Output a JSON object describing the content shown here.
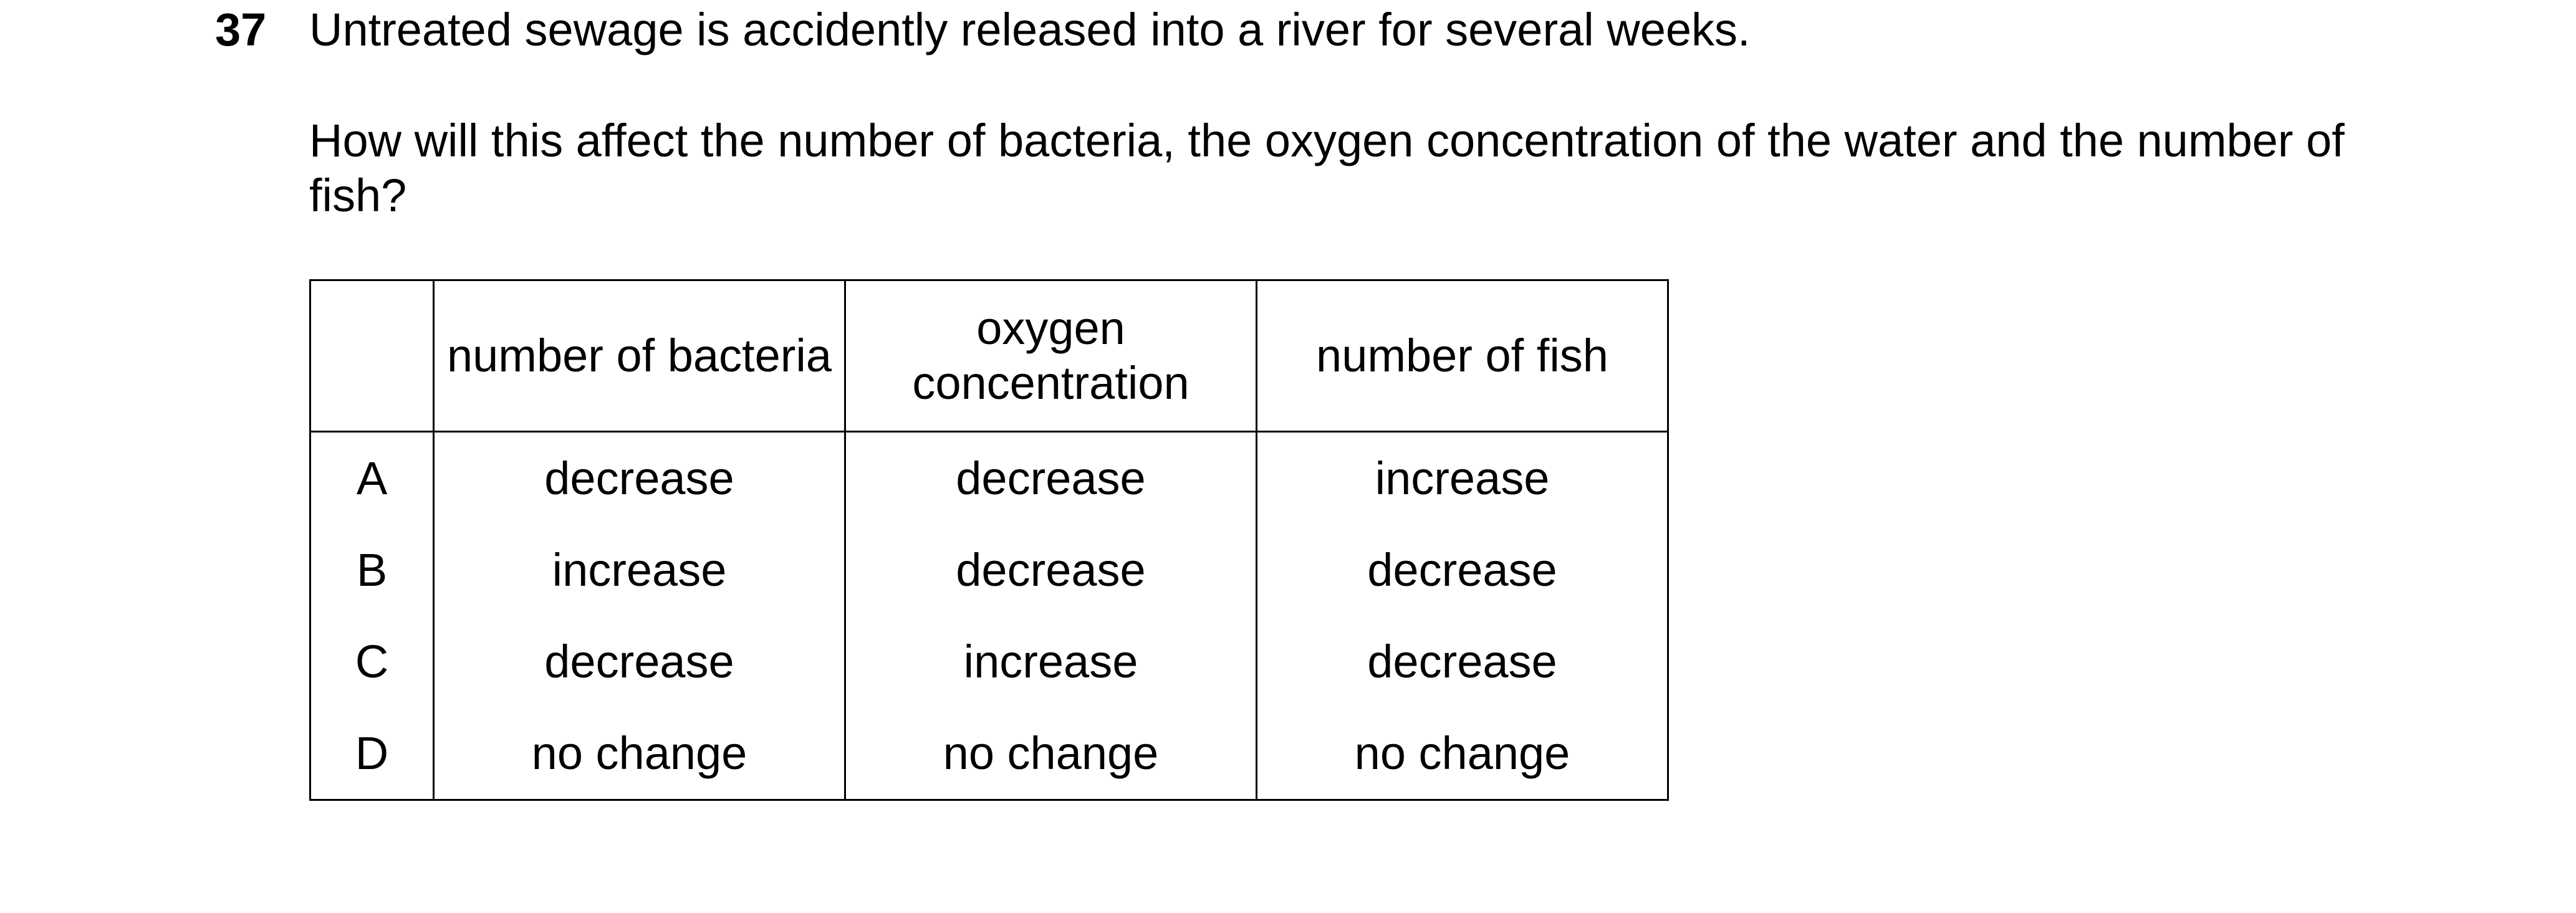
{
  "question": {
    "number": "37",
    "stem": "Untreated sewage is accidently released into a river for several weeks.",
    "prompt": "How will this affect the number of bacteria, the oxygen concentration of the water and the number of fish?"
  },
  "table": {
    "headers": [
      "",
      "number of bacteria",
      "oxygen concentration",
      "number of fish"
    ],
    "rows": [
      {
        "option": "A",
        "bacteria": "decrease",
        "oxygen": "decrease",
        "fish": "increase"
      },
      {
        "option": "B",
        "bacteria": "increase",
        "oxygen": "decrease",
        "fish": "decrease"
      },
      {
        "option": "C",
        "bacteria": "decrease",
        "oxygen": "increase",
        "fish": "decrease"
      },
      {
        "option": "D",
        "bacteria": "no change",
        "oxygen": "no change",
        "fish": "no change"
      }
    ]
  }
}
